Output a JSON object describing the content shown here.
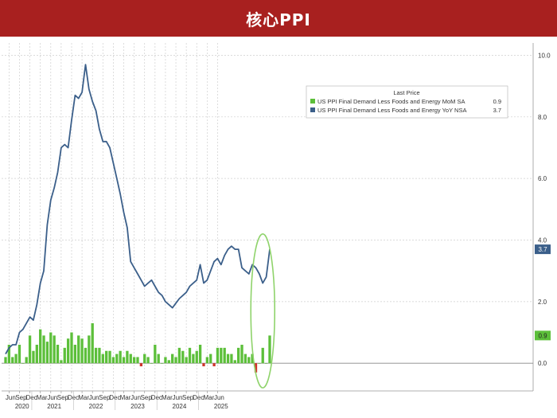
{
  "title": "核心PPI",
  "colors": {
    "title_bg": "#a8201f",
    "line": "#3b5f8a",
    "bar_pos": "#5cbf3a",
    "bar_neg": "#d0332b",
    "highlight": "#8fd36b",
    "grid": "#cfcfcf"
  },
  "chart_data": {
    "type": "bar+line",
    "title": "核心PPI",
    "y_ticks": [
      "10.0",
      "8.0",
      "6.0",
      "4.0",
      "2.0",
      "0.0"
    ],
    "ylim": [
      -0.9,
      10.4
    ],
    "x_month_ticks": [
      "Jun",
      "Sep",
      "Dec",
      "Mar",
      "Jun",
      "Sep",
      "Dec",
      "Mar",
      "Jun",
      "Sep",
      "Dec",
      "Mar",
      "Jun",
      "Sep",
      "Dec",
      "Mar",
      "Jun",
      "Sep",
      "Dec",
      "Mar",
      "Jun"
    ],
    "x_year_ticks": [
      "2020",
      "2021",
      "2022",
      "2023",
      "2024",
      "2025"
    ],
    "start": "2020-05",
    "legend": {
      "header": "Last Price",
      "entries": [
        {
          "label": "US PPI Final Demand Less Foods and Energy MoM SA",
          "value": "0.9"
        },
        {
          "label": "US PPI Final Demand Less Foods and Energy YoY NSA",
          "value": "3.7"
        }
      ]
    },
    "last_values": {
      "yoy": "3.7",
      "mom": "0.9"
    },
    "series": [
      {
        "name": "US PPI Final Demand Less Foods and Energy MoM SA",
        "type": "bar",
        "values": [
          0.2,
          0.6,
          0.2,
          0.3,
          0.6,
          0.0,
          0.2,
          0.9,
          0.4,
          0.6,
          1.1,
          0.9,
          0.7,
          1.0,
          0.9,
          0.6,
          0.1,
          0.5,
          0.8,
          1.0,
          0.6,
          0.9,
          0.8,
          0.5,
          0.9,
          1.3,
          0.5,
          0.5,
          0.3,
          0.4,
          0.4,
          0.2,
          0.3,
          0.4,
          0.2,
          0.4,
          0.3,
          0.2,
          0.2,
          -0.1,
          0.3,
          0.2,
          0.0,
          0.6,
          0.3,
          0.0,
          0.2,
          0.1,
          0.3,
          0.2,
          0.5,
          0.4,
          0.2,
          0.5,
          0.3,
          0.4,
          0.6,
          -0.1,
          0.2,
          0.3,
          -0.1,
          0.5,
          0.5,
          0.5,
          0.3,
          0.3,
          0.1,
          0.5,
          0.6,
          0.3,
          0.2,
          0.3,
          -0.3,
          0.0,
          0.5,
          0.0,
          0.9
        ]
      },
      {
        "name": "US PPI Final Demand Less Foods and Energy YoY NSA",
        "type": "line",
        "values": [
          0.3,
          0.5,
          0.6,
          0.6,
          1.0,
          1.1,
          1.3,
          1.5,
          1.4,
          1.9,
          2.6,
          3.0,
          4.5,
          5.3,
          5.7,
          6.2,
          7.0,
          7.1,
          7.0,
          7.9,
          8.7,
          8.6,
          8.8,
          9.7,
          8.9,
          8.5,
          8.2,
          7.6,
          7.2,
          7.2,
          7.0,
          6.5,
          6.0,
          5.5,
          4.9,
          4.4,
          3.3,
          3.1,
          2.9,
          2.7,
          2.5,
          2.6,
          2.7,
          2.5,
          2.3,
          2.2,
          2.0,
          1.9,
          1.8,
          1.95,
          2.1,
          2.2,
          2.3,
          2.5,
          2.6,
          2.7,
          3.2,
          2.6,
          2.7,
          3.0,
          3.3,
          3.4,
          3.2,
          3.5,
          3.7,
          3.8,
          3.7,
          3.7,
          3.1,
          3.0,
          2.9,
          3.2,
          3.1,
          2.9,
          2.6,
          2.8,
          3.7
        ]
      }
    ]
  }
}
